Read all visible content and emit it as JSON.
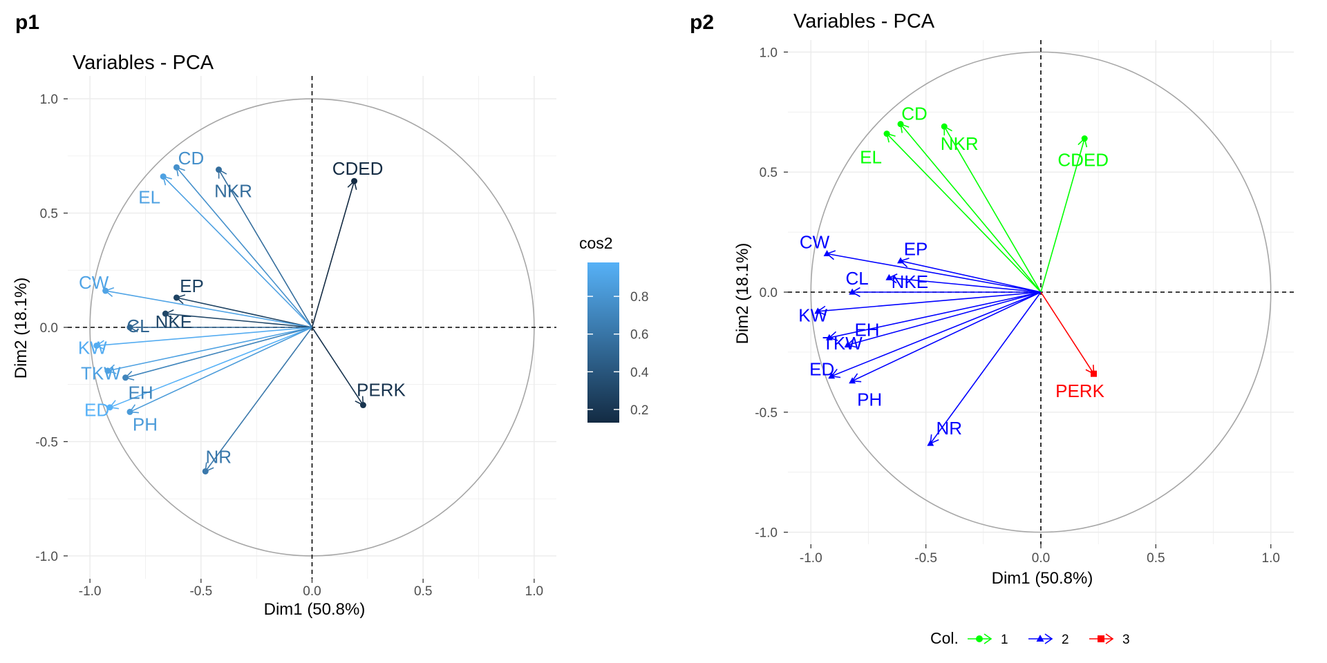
{
  "panel_tags": [
    "p1",
    "p2"
  ],
  "colors": {
    "cos2_low": "#132b43",
    "cos2_high": "#56b1f7",
    "cluster": {
      "1": "#00ff00",
      "2": "#0000ff",
      "3": "#ff0000"
    }
  },
  "chart_data": [
    {
      "type": "scatter",
      "subtype": "pca-variable-correlation-circle",
      "title": "Variables - PCA",
      "xlabel": "Dim1 (50.8%)",
      "ylabel": "Dim2 (18.1%)",
      "xlim": [
        -1.1,
        1.1
      ],
      "ylim": [
        -1.1,
        1.1
      ],
      "x_ticks": [
        -1.0,
        -0.5,
        0.0,
        0.5,
        1.0
      ],
      "y_ticks": [
        -1.0,
        -0.5,
        0.0,
        0.5,
        1.0
      ],
      "x_tick_labels": [
        "-1.0",
        "-0.5",
        "0.0",
        "0.5",
        "1.0"
      ],
      "y_tick_labels": [
        "-1.0",
        "-0.5",
        "0.0",
        "0.5",
        "1.0"
      ],
      "grid": true,
      "color_by": "cos2",
      "legend": {
        "title": "cos2",
        "type": "colorbar",
        "position": "right",
        "range": [
          0.13,
          0.98
        ],
        "ticks": [
          0.2,
          0.4,
          0.6,
          0.8
        ],
        "tick_labels": [
          "0.2",
          "0.4",
          "0.6",
          "0.8"
        ]
      },
      "points": [
        {
          "label": "CDED",
          "x": 0.19,
          "y": 0.64,
          "cos2": 0.13
        },
        {
          "label": "CD",
          "x": -0.61,
          "y": 0.7,
          "cos2": 0.77
        },
        {
          "label": "EL",
          "x": -0.67,
          "y": 0.66,
          "cos2": 0.88
        },
        {
          "label": "NKR",
          "x": -0.42,
          "y": 0.69,
          "cos2": 0.55
        },
        {
          "label": "EP",
          "x": -0.61,
          "y": 0.13,
          "cos2": 0.28
        },
        {
          "label": "CW",
          "x": -0.93,
          "y": 0.16,
          "cos2": 0.9
        },
        {
          "label": "CL",
          "x": -0.82,
          "y": 0.0,
          "cos2": 0.5
        },
        {
          "label": "NKE",
          "x": -0.66,
          "y": 0.06,
          "cos2": 0.3
        },
        {
          "label": "KW",
          "x": -0.97,
          "y": -0.08,
          "cos2": 0.95
        },
        {
          "label": "TKW",
          "x": -0.92,
          "y": -0.19,
          "cos2": 0.88
        },
        {
          "label": "EH",
          "x": -0.84,
          "y": -0.22,
          "cos2": 0.7
        },
        {
          "label": "ED",
          "x": -0.91,
          "y": -0.35,
          "cos2": 0.98
        },
        {
          "label": "PH",
          "x": -0.82,
          "y": -0.37,
          "cos2": 0.84
        },
        {
          "label": "NR",
          "x": -0.48,
          "y": -0.63,
          "cos2": 0.62
        },
        {
          "label": "PERK",
          "x": 0.23,
          "y": -0.34,
          "cos2": 0.18
        }
      ]
    },
    {
      "type": "scatter",
      "subtype": "pca-variable-correlation-circle",
      "title": "Variables - PCA",
      "xlabel": "Dim1 (50.8%)",
      "ylabel": "Dim2 (18.1%)",
      "xlim": [
        -1.1,
        1.1
      ],
      "ylim": [
        -1.05,
        1.05
      ],
      "x_ticks": [
        -1.0,
        -0.5,
        0.0,
        0.5,
        1.0
      ],
      "y_ticks": [
        -1.0,
        -0.5,
        0.0,
        0.5,
        1.0
      ],
      "x_tick_labels": [
        "-1.0",
        "-0.5",
        "0.0",
        "0.5",
        "1.0"
      ],
      "y_tick_labels": [
        "-1.0",
        "-0.5",
        "0.0",
        "0.5",
        "1.0"
      ],
      "grid": true,
      "color_by": "Col.",
      "legend": {
        "title": "Col.",
        "type": "discrete",
        "position": "bottom",
        "entries": [
          {
            "label": "1",
            "color": "#00ff00",
            "shape": "circle"
          },
          {
            "label": "2",
            "color": "#0000ff",
            "shape": "triangle"
          },
          {
            "label": "3",
            "color": "#ff0000",
            "shape": "square"
          }
        ]
      },
      "points": [
        {
          "label": "CDED",
          "x": 0.19,
          "y": 0.64,
          "group": "1"
        },
        {
          "label": "CD",
          "x": -0.61,
          "y": 0.7,
          "group": "1"
        },
        {
          "label": "EL",
          "x": -0.67,
          "y": 0.66,
          "group": "1"
        },
        {
          "label": "NKR",
          "x": -0.42,
          "y": 0.69,
          "group": "1"
        },
        {
          "label": "EP",
          "x": -0.61,
          "y": 0.13,
          "group": "2"
        },
        {
          "label": "CW",
          "x": -0.93,
          "y": 0.16,
          "group": "2"
        },
        {
          "label": "CL",
          "x": -0.82,
          "y": 0.0,
          "group": "2"
        },
        {
          "label": "NKE",
          "x": -0.66,
          "y": 0.06,
          "group": "2"
        },
        {
          "label": "KW",
          "x": -0.97,
          "y": -0.08,
          "group": "2"
        },
        {
          "label": "TKW",
          "x": -0.92,
          "y": -0.19,
          "group": "2"
        },
        {
          "label": "EH",
          "x": -0.84,
          "y": -0.22,
          "group": "2"
        },
        {
          "label": "ED",
          "x": -0.91,
          "y": -0.35,
          "group": "2"
        },
        {
          "label": "PH",
          "x": -0.82,
          "y": -0.37,
          "group": "2"
        },
        {
          "label": "NR",
          "x": -0.48,
          "y": -0.63,
          "group": "2"
        },
        {
          "label": "PERK",
          "x": 0.23,
          "y": -0.34,
          "group": "3"
        }
      ]
    }
  ]
}
